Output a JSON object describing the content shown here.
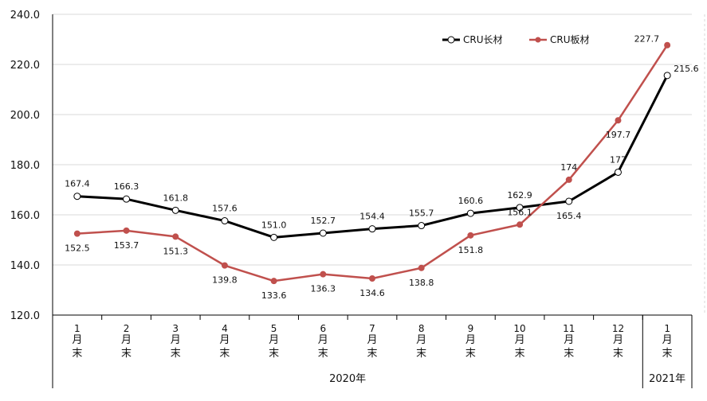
{
  "chart_data": {
    "type": "line",
    "categories": [
      "1月末",
      "2月末",
      "3月末",
      "4月末",
      "5月末",
      "6月末",
      "7月末",
      "8月末",
      "9月末",
      "10月末",
      "11月末",
      "12月末",
      "1月末"
    ],
    "category_groups": [
      {
        "label": "2020年",
        "from": 0,
        "to": 11
      },
      {
        "label": "2021年",
        "from": 12,
        "to": 12
      }
    ],
    "ylim": [
      120,
      240
    ],
    "yticks": [
      "120.0",
      "140.0",
      "160.0",
      "180.0",
      "200.0",
      "220.0",
      "240.0"
    ],
    "legend_position": "top-right",
    "series": [
      {
        "name": "CRU长材",
        "color": "#000000",
        "marker": "hollow-circle",
        "values": [
          167.4,
          166.3,
          161.8,
          157.6,
          151.0,
          152.7,
          154.4,
          155.7,
          160.6,
          162.9,
          165.4,
          177,
          215.6
        ],
        "labels": [
          "167.4",
          "166.3",
          "161.8",
          "157.6",
          "151.0",
          "152.7",
          "154.4",
          "155.7",
          "160.6",
          "162.9",
          "165.4",
          "177",
          "215.6"
        ]
      },
      {
        "name": "CRU板材",
        "color": "#C0504D",
        "marker": "filled-circle",
        "values": [
          152.5,
          153.7,
          151.3,
          139.8,
          133.6,
          136.3,
          134.6,
          138.8,
          151.8,
          156.1,
          174,
          197.7,
          227.7
        ],
        "labels": [
          "152.5",
          "153.7",
          "151.3",
          "139.8",
          "133.6",
          "136.3",
          "134.6",
          "138.8",
          "151.8",
          "156.1",
          "174",
          "197.7",
          "227.7"
        ]
      }
    ]
  }
}
